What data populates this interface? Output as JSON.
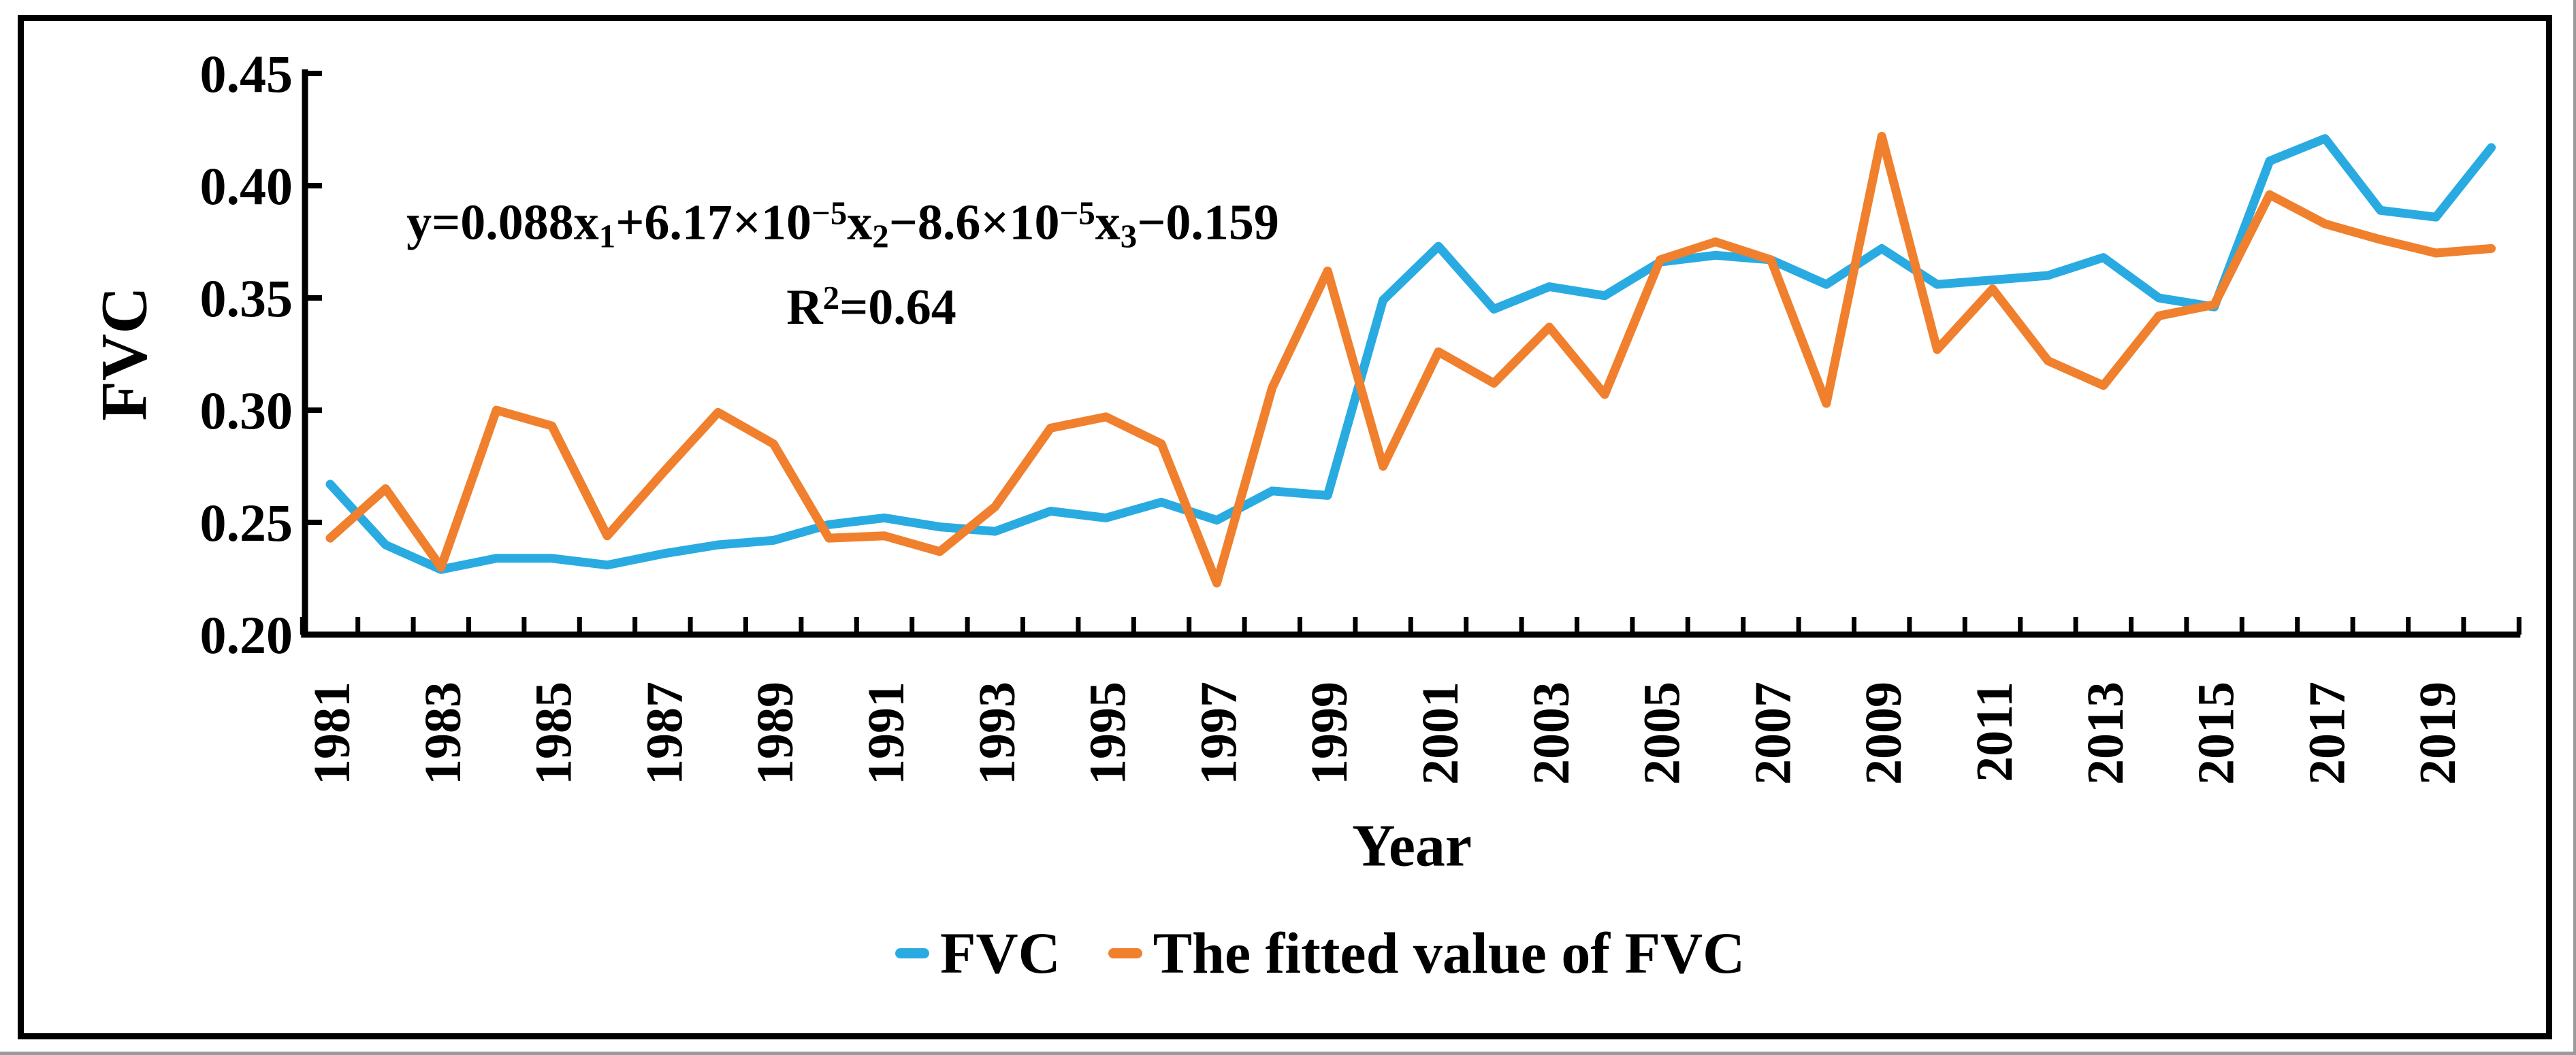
{
  "figure": {
    "background": "#ffffff",
    "border_color": "#000000"
  },
  "chart_data": {
    "type": "line",
    "title": "",
    "xlabel": "Year",
    "ylabel": "FVC",
    "ylim": [
      0.2,
      0.45
    ],
    "ytick_step": 0.05,
    "ytick_labels": [
      "0.45",
      "0.40",
      "0.35",
      "0.30",
      "0.25",
      "0.20"
    ],
    "grid": false,
    "legend_position": "bottom-center",
    "x": [
      1981,
      1982,
      1983,
      1984,
      1985,
      1986,
      1987,
      1988,
      1989,
      1990,
      1991,
      1992,
      1993,
      1994,
      1995,
      1996,
      1997,
      1998,
      1999,
      2000,
      2001,
      2002,
      2003,
      2004,
      2005,
      2006,
      2007,
      2008,
      2009,
      2010,
      2011,
      2012,
      2013,
      2014,
      2015,
      2016,
      2017,
      2018,
      2019,
      2020
    ],
    "xtick_labels": [
      "1981",
      "1983",
      "1985",
      "1987",
      "1989",
      "1991",
      "1993",
      "1995",
      "1997",
      "1999",
      "2001",
      "2003",
      "2005",
      "2007",
      "2009",
      "2011",
      "2013",
      "2015",
      "2017",
      "2019"
    ],
    "series": [
      {
        "name": "FVC",
        "color": "#29ABE2",
        "values": [
          0.267,
          0.24,
          0.229,
          0.234,
          0.234,
          0.231,
          0.236,
          0.24,
          0.242,
          0.249,
          0.252,
          0.248,
          0.246,
          0.255,
          0.252,
          0.259,
          0.251,
          0.264,
          0.262,
          0.349,
          0.373,
          0.345,
          0.355,
          0.351,
          0.366,
          0.369,
          0.367,
          0.356,
          0.372,
          0.356,
          0.358,
          0.36,
          0.368,
          0.35,
          0.346,
          0.411,
          0.421,
          0.389,
          0.386,
          0.417
        ]
      },
      {
        "name": "The fitted value of FVC",
        "color": "#F0802D",
        "values": [
          0.243,
          0.265,
          0.23,
          0.3,
          0.293,
          0.244,
          0.272,
          0.299,
          0.285,
          0.243,
          0.244,
          0.237,
          0.257,
          0.292,
          0.297,
          0.285,
          0.223,
          0.31,
          0.362,
          0.275,
          0.326,
          0.312,
          0.337,
          0.307,
          0.367,
          0.375,
          0.367,
          0.303,
          0.422,
          0.327,
          0.354,
          0.322,
          0.311,
          0.342,
          0.347,
          0.396,
          0.383,
          0.376,
          0.37,
          0.372
        ]
      }
    ],
    "annotation": {
      "line1_plain": "y=0.088x1+6.17×10−5x2−8.6×10−5x3−0.159",
      "line2_plain": "R2=0.64",
      "line1": [
        {
          "text": "y=0.088x"
        },
        {
          "text": "1",
          "style": "sub"
        },
        {
          "text": "+6.17×10"
        },
        {
          "text": "−5",
          "style": "sup"
        },
        {
          "text": "x"
        },
        {
          "text": "2",
          "style": "sub"
        },
        {
          "text": "−8.6×10"
        },
        {
          "text": "−5",
          "style": "sup"
        },
        {
          "text": "x"
        },
        {
          "text": "3",
          "style": "sub"
        },
        {
          "text": "−0.159"
        }
      ],
      "line2": [
        {
          "text": "R"
        },
        {
          "text": "2",
          "style": "sup"
        },
        {
          "text": "=0.64"
        }
      ]
    }
  },
  "legend": {
    "items": [
      {
        "label": "FVC",
        "color": "#29ABE2"
      },
      {
        "label": "The fitted value of FVC",
        "color": "#F0802D"
      }
    ]
  }
}
